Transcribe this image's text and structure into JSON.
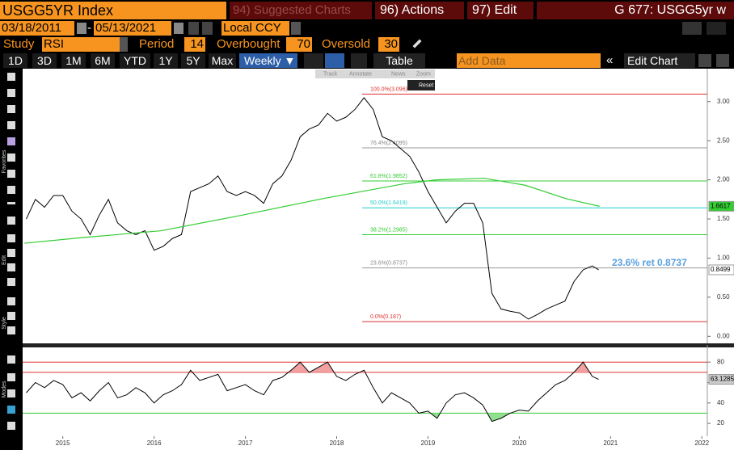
{
  "header": {
    "security": "USGG5YR Index",
    "suggested": "94) Suggested Charts",
    "actions": "96) Actions",
    "edit": "97) Edit",
    "page": "G 677: USGG5yr w"
  },
  "range": {
    "start": "03/18/2011",
    "sep": "-",
    "end": "05/13/2021",
    "currency": "Local CCY"
  },
  "study": {
    "label": "Study",
    "name": "RSI",
    "period_label": "Period",
    "period": 14,
    "overbought_label": "Overbought",
    "overbought": 70,
    "oversold_label": "Oversold",
    "oversold": 30
  },
  "periods": [
    "1D",
    "3D",
    "1M",
    "6M",
    "YTD",
    "1Y",
    "5Y",
    "Max"
  ],
  "frequency": "Weekly ▼",
  "table": "Table",
  "add_data": "Add Data",
  "edit_chart": "Edit Chart",
  "chart_tools": [
    "Track",
    "Annotate",
    "News",
    "Zoom",
    "Reset"
  ],
  "side_labels": [
    "Favorites",
    "Edit",
    "Style",
    "Modes"
  ],
  "chart_data": [
    {
      "type": "line",
      "xlim": [
        2015.06,
        2022.56
      ],
      "ylim": [
        -0.09,
        3.39
      ],
      "yticks": [
        {
          "value": 0,
          "label": "0.00"
        },
        {
          "value": 0.5,
          "label": "0.50"
        },
        {
          "value": 1,
          "label": "1.00"
        },
        {
          "value": 1.5,
          "label": "1.50"
        },
        {
          "value": 2,
          "label": "2.00"
        },
        {
          "value": 2.5,
          "label": "2.50"
        },
        {
          "value": 3,
          "label": "3.00"
        }
      ],
      "series": [
        {
          "color": "#000000",
          "tag_bg": "#ffffff",
          "x": [
            2015.1,
            2015.2,
            2015.3,
            2015.4,
            2015.5,
            2015.6,
            2015.7,
            2015.8,
            2015.9,
            2016.0,
            2016.1,
            2016.2,
            2016.3,
            2016.4,
            2016.5,
            2016.6,
            2016.7,
            2016.8,
            2016.9,
            2017.0,
            2017.1,
            2017.2,
            2017.3,
            2017.4,
            2017.5,
            2017.6,
            2017.7,
            2017.8,
            2017.9,
            2018.0,
            2018.1,
            2018.2,
            2018.3,
            2018.4,
            2018.5,
            2018.6,
            2018.7,
            2018.8,
            2018.9,
            2019.0,
            2019.1,
            2019.2,
            2019.3,
            2019.4,
            2019.5,
            2019.6,
            2019.7,
            2019.8,
            2019.9,
            2020.0,
            2020.1,
            2020.2,
            2020.3,
            2020.4,
            2020.5,
            2020.6,
            2020.7,
            2020.8,
            2020.9,
            2021.0,
            2021.1,
            2021.2,
            2021.3,
            2021.37
          ],
          "values": [
            1.5,
            1.75,
            1.65,
            1.8,
            1.8,
            1.6,
            1.5,
            1.3,
            1.55,
            1.75,
            1.45,
            1.35,
            1.3,
            1.35,
            1.1,
            1.15,
            1.25,
            1.3,
            1.85,
            1.9,
            1.95,
            2.05,
            1.85,
            1.8,
            1.85,
            1.8,
            1.7,
            1.95,
            2.05,
            2.25,
            2.55,
            2.65,
            2.7,
            2.85,
            2.75,
            2.8,
            2.9,
            3.05,
            2.9,
            2.55,
            2.5,
            2.4,
            2.3,
            2.1,
            1.85,
            1.65,
            1.45,
            1.6,
            1.7,
            1.7,
            1.45,
            0.55,
            0.35,
            0.32,
            0.3,
            0.22,
            0.28,
            0.35,
            0.4,
            0.45,
            0.7,
            0.85,
            0.9,
            0.8499
          ],
          "tag": {
            "value": 0.8499,
            "label": "0.8499"
          }
        },
        {
          "color": "#33cc33",
          "tag_bg": "#33cc33",
          "x": [
            2015.08,
            2015.7,
            2016.58,
            2017.47,
            2018.35,
            2019.24,
            2019.59,
            2020.12,
            2020.57,
            2021.01,
            2021.38
          ],
          "values": [
            1.19,
            1.26,
            1.35,
            1.55,
            1.76,
            1.95,
            2.0,
            2.02,
            1.93,
            1.76,
            1.6617
          ],
          "tag": {
            "value": 1.6617,
            "label": "1.6617"
          }
        }
      ],
      "levels": [
        {
          "label": "100.0%(3.096)",
          "value": 3.096,
          "color": "#e03030"
        },
        {
          "label": "76.4%(2.4095)",
          "value": 2.4095,
          "color": "#999999"
        },
        {
          "label": "61.8%(1.9852)",
          "value": 1.9852,
          "color": "#33cc33"
        },
        {
          "label": "50.0%(1.6419)",
          "value": 1.6419,
          "color": "#22cccc"
        },
        {
          "label": "38.2%(1.2985)",
          "value": 1.2985,
          "color": "#33cc33"
        },
        {
          "label": "23.6%(0.8737)",
          "value": 0.8737,
          "color": "#999999"
        },
        {
          "label": "0.0%(0.187)",
          "value": 0.187,
          "color": "#e03030"
        }
      ],
      "annotation": "23.6%  ret 0.8737"
    },
    {
      "type": "line",
      "xlim": [
        2015.06,
        2022.56
      ],
      "ylim": [
        7.4,
        94.4
      ],
      "yticks": [
        20,
        40,
        60,
        80
      ],
      "xticks": [
        {
          "value": 2015.5,
          "label": "2015"
        },
        {
          "value": 2016.5,
          "label": "2016"
        },
        {
          "value": 2017.5,
          "label": "2017"
        },
        {
          "value": 2018.5,
          "label": "2018"
        },
        {
          "value": 2019.5,
          "label": "2019"
        },
        {
          "value": 2020.5,
          "label": "2020"
        },
        {
          "value": 2021.5,
          "label": "2021"
        },
        {
          "value": 2022.5,
          "label": "2022"
        }
      ],
      "series": [
        {
          "color": "#000000",
          "tag_bg": "#cccccc",
          "x": [
            2015.1,
            2015.2,
            2015.3,
            2015.4,
            2015.5,
            2015.6,
            2015.7,
            2015.8,
            2015.9,
            2016.0,
            2016.1,
            2016.2,
            2016.3,
            2016.4,
            2016.5,
            2016.6,
            2016.7,
            2016.8,
            2016.9,
            2017.0,
            2017.1,
            2017.2,
            2017.3,
            2017.4,
            2017.5,
            2017.6,
            2017.7,
            2017.8,
            2017.9,
            2018.0,
            2018.1,
            2018.2,
            2018.3,
            2018.4,
            2018.5,
            2018.6,
            2018.7,
            2018.8,
            2018.9,
            2019.0,
            2019.1,
            2019.2,
            2019.3,
            2019.4,
            2019.5,
            2019.6,
            2019.7,
            2019.8,
            2019.9,
            2020.0,
            2020.1,
            2020.2,
            2020.3,
            2020.4,
            2020.5,
            2020.6,
            2020.7,
            2020.8,
            2020.9,
            2021.0,
            2021.1,
            2021.2,
            2021.3,
            2021.37
          ],
          "values": [
            50,
            60,
            55,
            62,
            58,
            45,
            50,
            42,
            52,
            60,
            45,
            48,
            55,
            50,
            40,
            48,
            52,
            58,
            72,
            62,
            65,
            68,
            52,
            55,
            58,
            52,
            48,
            62,
            65,
            72,
            80,
            70,
            75,
            80,
            66,
            62,
            68,
            72,
            55,
            40,
            50,
            45,
            40,
            30,
            32,
            25,
            40,
            48,
            50,
            45,
            38,
            22,
            25,
            30,
            33,
            32,
            42,
            50,
            58,
            62,
            70,
            80,
            66,
            63.1285
          ],
          "tag": {
            "value": 63.1285,
            "label": "63.1285"
          }
        }
      ]
    }
  ]
}
